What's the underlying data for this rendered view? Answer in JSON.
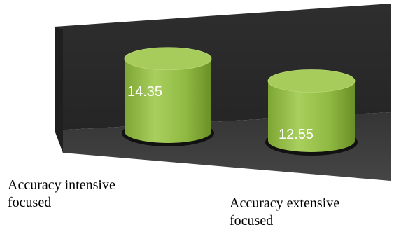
{
  "chart_data": {
    "type": "bar",
    "style": "3d-cylinder",
    "categories": [
      [
        "Accuracy intensive",
        "focused"
      ],
      [
        "Accuracy extensive",
        "focused"
      ]
    ],
    "values": [
      14.35,
      12.55
    ],
    "data_labels": [
      "14.35",
      "12.55"
    ],
    "title": "",
    "xlabel": "",
    "ylabel": "",
    "grid": false,
    "legend": "none",
    "colors": {
      "bar": "#8fb840",
      "bar_top": "#a8cc5c",
      "wall": "#2b2b2b",
      "floor": "#3a3a3a",
      "label": "#ffffff"
    }
  }
}
